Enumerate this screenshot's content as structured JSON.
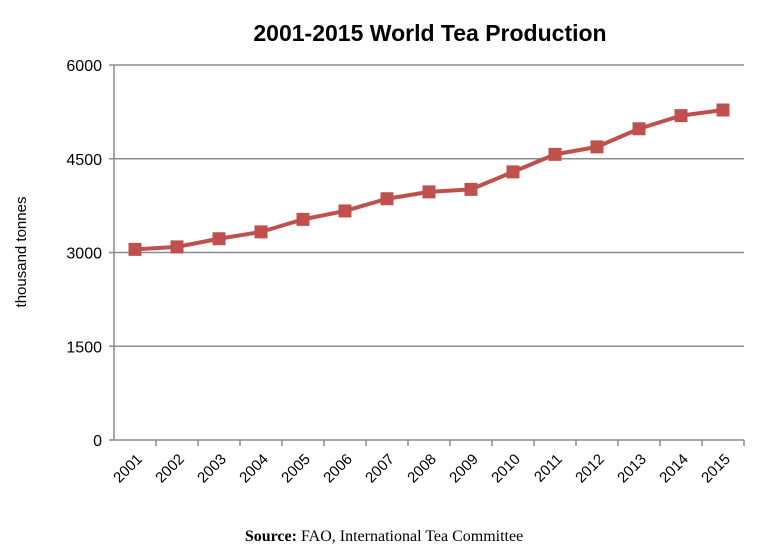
{
  "chart_data": {
    "type": "line",
    "title": "2001-2015 World Tea Production",
    "ylabel": "thousand tonnes",
    "xlabel": "",
    "categories": [
      "2001",
      "2002",
      "2003",
      "2004",
      "2005",
      "2006",
      "2007",
      "2008",
      "2009",
      "2010",
      "2011",
      "2012",
      "2013",
      "2014",
      "2015"
    ],
    "values": [
      3050,
      3090,
      3220,
      3330,
      3530,
      3665,
      3860,
      3970,
      4010,
      4290,
      4570,
      4690,
      4980,
      5190,
      5280
    ],
    "ylim": [
      0,
      6000
    ],
    "yticks": [
      "0",
      "1500",
      "3000",
      "4500",
      "6000"
    ],
    "grid": true,
    "legend": "none",
    "color": "#c0504d",
    "marker": "square"
  },
  "source": {
    "label": "Source:",
    "text": " FAO, International Tea Committee"
  }
}
